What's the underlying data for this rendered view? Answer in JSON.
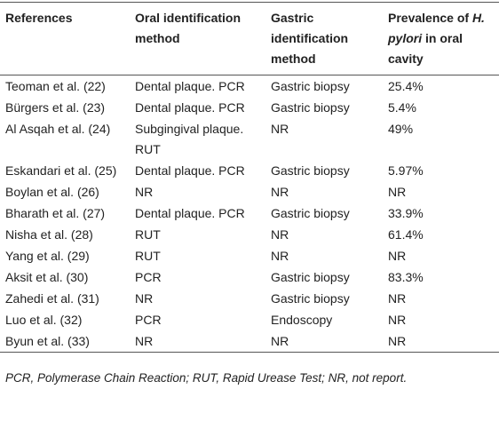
{
  "table": {
    "header": [
      [
        "References"
      ],
      [
        "Oral identification method"
      ],
      [
        "Gastric identification method"
      ],
      [
        "Prevalence of ",
        "H. pylori",
        " in oral cavity"
      ]
    ],
    "rows": [
      [
        "Teoman et al. (22)",
        "Dental plaque. PCR",
        "Gastric biopsy",
        "25.4%"
      ],
      [
        "Bürgers et al. (23)",
        "Dental plaque. PCR",
        "Gastric biopsy",
        "5.4%"
      ],
      [
        "Al Asqah et al. (24)",
        "Subgingival plaque. RUT",
        "NR",
        "49%"
      ],
      [
        "Eskandari et al. (25)",
        "Dental plaque. PCR",
        "Gastric biopsy",
        "5.97%"
      ],
      [
        "Boylan et al. (26)",
        "NR",
        "NR",
        "NR"
      ],
      [
        "Bharath et al. (27)",
        "Dental plaque. PCR",
        "Gastric biopsy",
        "33.9%"
      ],
      [
        "Nisha et al. (28)",
        "RUT",
        "NR",
        "61.4%"
      ],
      [
        "Yang et al. (29)",
        "RUT",
        "NR",
        "NR"
      ],
      [
        "Aksit et al. (30)",
        "PCR",
        "Gastric biopsy",
        "83.3%"
      ],
      [
        "Zahedi et al. (31)",
        "NR",
        "Gastric biopsy",
        "NR"
      ],
      [
        "Luo et al. (32)",
        "PCR",
        "Endoscopy",
        "NR"
      ],
      [
        "Byun et al. (33)",
        "NR",
        "NR",
        "NR"
      ]
    ],
    "footnote": "PCR, Polymerase Chain Reaction; RUT, Rapid Urease Test; NR, not report."
  }
}
